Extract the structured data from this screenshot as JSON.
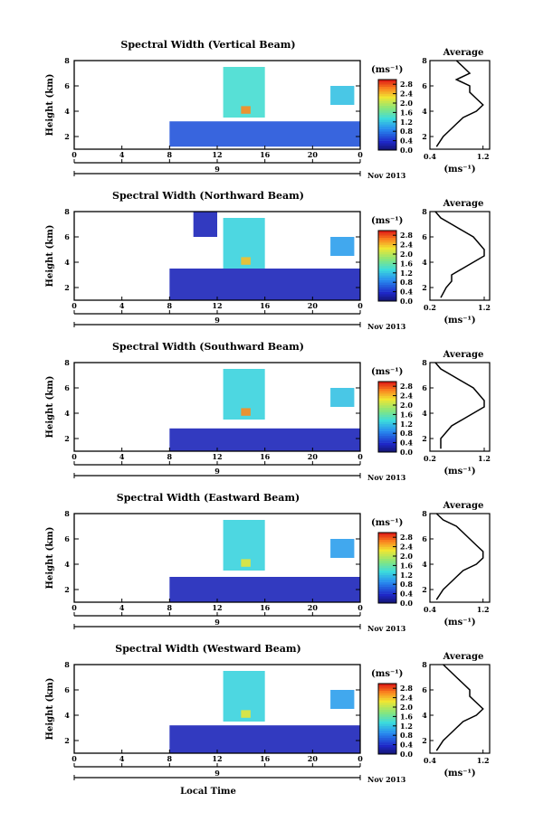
{
  "figure": {
    "xlabel": "Local Time",
    "date_label": "Nov 2013",
    "day_label": "9",
    "ylabel": "Height (km)",
    "colorbar_unit": "(ms⁻¹)",
    "avg_title": "Average",
    "avg_unit": "(ms⁻¹)"
  },
  "chart_data": [
    {
      "type": "heatmap",
      "title": "Spectral Width (Vertical Beam)",
      "xlabel": "",
      "ylabel": "Height (km)",
      "x_ticks": [
        "0",
        "4",
        "8",
        "12",
        "16",
        "20",
        "0"
      ],
      "xlim": [
        0,
        24
      ],
      "y_ticks": [
        "2",
        "4",
        "6",
        "8"
      ],
      "ylim": [
        1,
        8
      ],
      "colorbar": {
        "ticks": [
          "0.0",
          "0.4",
          "0.8",
          "1.2",
          "1.6",
          "2.0",
          "2.4",
          "2.8"
        ],
        "range": [
          0,
          3.0
        ]
      },
      "regions": [
        {
          "t0": 8,
          "t1": 24,
          "h0": 1.2,
          "h1": 3.2,
          "value": 0.6
        },
        {
          "t0": 12.5,
          "t1": 16,
          "h0": 3.5,
          "h1": 7.5,
          "value": 1.4
        },
        {
          "t0": 14,
          "t1": 14.8,
          "h0": 3.8,
          "h1": 4.4,
          "value": 2.6
        },
        {
          "t0": 21.5,
          "t1": 23.5,
          "h0": 4.5,
          "h1": 6.0,
          "value": 1.2
        }
      ],
      "average_profile": {
        "title": "Average",
        "xlim": [
          0.4,
          1.3
        ],
        "x_ticks": [
          "0.4",
          "1.2"
        ],
        "height": [
          1.2,
          2.0,
          2.5,
          3.0,
          3.5,
          4.0,
          4.5,
          5.0,
          5.5,
          6.0,
          6.5,
          7.0,
          7.5,
          8.0
        ],
        "value": [
          0.5,
          0.6,
          0.7,
          0.8,
          0.9,
          1.1,
          1.2,
          1.1,
          1.0,
          1.0,
          0.8,
          1.0,
          0.9,
          0.8
        ]
      }
    },
    {
      "type": "heatmap",
      "title": "Spectral Width (Northward Beam)",
      "xlabel": "",
      "ylabel": "Height (km)",
      "x_ticks": [
        "0",
        "4",
        "8",
        "12",
        "16",
        "20",
        "0"
      ],
      "xlim": [
        0,
        24
      ],
      "y_ticks": [
        "2",
        "4",
        "6",
        "8"
      ],
      "ylim": [
        1,
        8
      ],
      "colorbar": {
        "ticks": [
          "0.0",
          "0.4",
          "0.8",
          "1.2",
          "1.6",
          "2.0",
          "2.4",
          "2.8"
        ],
        "range": [
          0,
          3.0
        ]
      },
      "regions": [
        {
          "t0": 8,
          "t1": 24,
          "h0": 1.0,
          "h1": 3.5,
          "value": 0.3
        },
        {
          "t0": 12.5,
          "t1": 16,
          "h0": 3.5,
          "h1": 7.5,
          "value": 1.3
        },
        {
          "t0": 14,
          "t1": 14.8,
          "h0": 3.8,
          "h1": 4.4,
          "value": 2.4
        },
        {
          "t0": 21.5,
          "t1": 23.5,
          "h0": 4.5,
          "h1": 6.0,
          "value": 1.0
        },
        {
          "t0": 10,
          "t1": 12,
          "h0": 6.0,
          "h1": 8.0,
          "value": 0.3
        }
      ],
      "average_profile": {
        "title": "Average",
        "xlim": [
          0.2,
          1.3
        ],
        "x_ticks": [
          "0.2",
          "1.2"
        ],
        "height": [
          1.2,
          2.0,
          2.5,
          3.0,
          3.5,
          4.0,
          4.5,
          5.0,
          5.5,
          6.0,
          6.5,
          7.0,
          7.5,
          8.0
        ],
        "value": [
          0.4,
          0.5,
          0.6,
          0.6,
          0.8,
          1.0,
          1.2,
          1.2,
          1.1,
          1.0,
          0.8,
          0.6,
          0.4,
          0.3
        ]
      }
    },
    {
      "type": "heatmap",
      "title": "Spectral Width (Southward Beam)",
      "xlabel": "",
      "ylabel": "Height (km)",
      "x_ticks": [
        "0",
        "4",
        "8",
        "12",
        "16",
        "20",
        "0"
      ],
      "xlim": [
        0,
        24
      ],
      "y_ticks": [
        "2",
        "4",
        "6",
        "8"
      ],
      "ylim": [
        1,
        8
      ],
      "colorbar": {
        "ticks": [
          "0.0",
          "0.4",
          "0.8",
          "1.2",
          "1.6",
          "2.0",
          "2.4",
          "2.8"
        ],
        "range": [
          0,
          3.0
        ]
      },
      "regions": [
        {
          "t0": 8,
          "t1": 24,
          "h0": 1.0,
          "h1": 2.8,
          "value": 0.3
        },
        {
          "t0": 12.5,
          "t1": 16,
          "h0": 3.5,
          "h1": 7.5,
          "value": 1.3
        },
        {
          "t0": 14,
          "t1": 14.8,
          "h0": 3.8,
          "h1": 4.4,
          "value": 2.6
        },
        {
          "t0": 21.5,
          "t1": 23.5,
          "h0": 4.5,
          "h1": 6.0,
          "value": 1.2
        }
      ],
      "average_profile": {
        "title": "Average",
        "xlim": [
          0.2,
          1.3
        ],
        "x_ticks": [
          "0.2",
          "1.2"
        ],
        "height": [
          1.2,
          2.0,
          2.5,
          3.0,
          3.5,
          4.0,
          4.5,
          5.0,
          5.5,
          6.0,
          6.5,
          7.0,
          7.5,
          8.0
        ],
        "value": [
          0.4,
          0.4,
          0.5,
          0.6,
          0.8,
          1.0,
          1.2,
          1.2,
          1.1,
          1.0,
          0.8,
          0.6,
          0.4,
          0.3
        ]
      }
    },
    {
      "type": "heatmap",
      "title": "Spectral Width (Eastward Beam)",
      "xlabel": "",
      "ylabel": "Height (km)",
      "x_ticks": [
        "0",
        "4",
        "8",
        "12",
        "16",
        "20",
        "0"
      ],
      "xlim": [
        0,
        24
      ],
      "y_ticks": [
        "2",
        "4",
        "6",
        "8"
      ],
      "ylim": [
        1,
        8
      ],
      "colorbar": {
        "ticks": [
          "0.0",
          "0.4",
          "0.8",
          "1.2",
          "1.6",
          "2.0",
          "2.4",
          "2.8"
        ],
        "range": [
          0,
          3.0
        ]
      },
      "regions": [
        {
          "t0": 8,
          "t1": 24,
          "h0": 1.0,
          "h1": 3.0,
          "value": 0.3
        },
        {
          "t0": 12.5,
          "t1": 16,
          "h0": 3.5,
          "h1": 7.5,
          "value": 1.3
        },
        {
          "t0": 14,
          "t1": 14.8,
          "h0": 3.8,
          "h1": 4.4,
          "value": 2.2
        },
        {
          "t0": 21.5,
          "t1": 23.5,
          "h0": 4.5,
          "h1": 6.0,
          "value": 1.0
        }
      ],
      "average_profile": {
        "title": "Average",
        "xlim": [
          0.4,
          1.3
        ],
        "x_ticks": [
          "0.4",
          "1.2"
        ],
        "height": [
          1.2,
          2.0,
          2.5,
          3.0,
          3.5,
          4.0,
          4.5,
          5.0,
          5.5,
          6.0,
          6.5,
          7.0,
          7.5,
          8.0
        ],
        "value": [
          0.5,
          0.6,
          0.7,
          0.8,
          0.9,
          1.1,
          1.2,
          1.2,
          1.1,
          1.0,
          0.9,
          0.8,
          0.6,
          0.5
        ]
      }
    },
    {
      "type": "heatmap",
      "title": "Spectral Width (Westward Beam)",
      "xlabel": "Local Time",
      "ylabel": "Height (km)",
      "x_ticks": [
        "0",
        "4",
        "8",
        "12",
        "16",
        "20",
        "0"
      ],
      "xlim": [
        0,
        24
      ],
      "y_ticks": [
        "2",
        "4",
        "6",
        "8"
      ],
      "ylim": [
        1,
        8
      ],
      "colorbar": {
        "ticks": [
          "0.0",
          "0.4",
          "0.8",
          "1.2",
          "1.6",
          "2.0",
          "2.4",
          "2.8"
        ],
        "range": [
          0,
          3.0
        ]
      },
      "regions": [
        {
          "t0": 8,
          "t1": 24,
          "h0": 1.0,
          "h1": 3.2,
          "value": 0.3
        },
        {
          "t0": 12.5,
          "t1": 16,
          "h0": 3.5,
          "h1": 7.5,
          "value": 1.3
        },
        {
          "t0": 14,
          "t1": 14.8,
          "h0": 3.8,
          "h1": 4.4,
          "value": 2.2
        },
        {
          "t0": 21.5,
          "t1": 23.5,
          "h0": 4.5,
          "h1": 6.0,
          "value": 1.0
        }
      ],
      "average_profile": {
        "title": "Average",
        "xlim": [
          0.4,
          1.3
        ],
        "x_ticks": [
          "0.4",
          "1.2"
        ],
        "height": [
          1.2,
          2.0,
          2.5,
          3.0,
          3.5,
          4.0,
          4.5,
          5.0,
          5.5,
          6.0,
          6.5,
          7.0,
          7.5,
          8.0
        ],
        "value": [
          0.5,
          0.6,
          0.7,
          0.8,
          0.9,
          1.1,
          1.2,
          1.1,
          1.0,
          1.0,
          0.9,
          0.8,
          0.7,
          0.6
        ]
      }
    }
  ]
}
